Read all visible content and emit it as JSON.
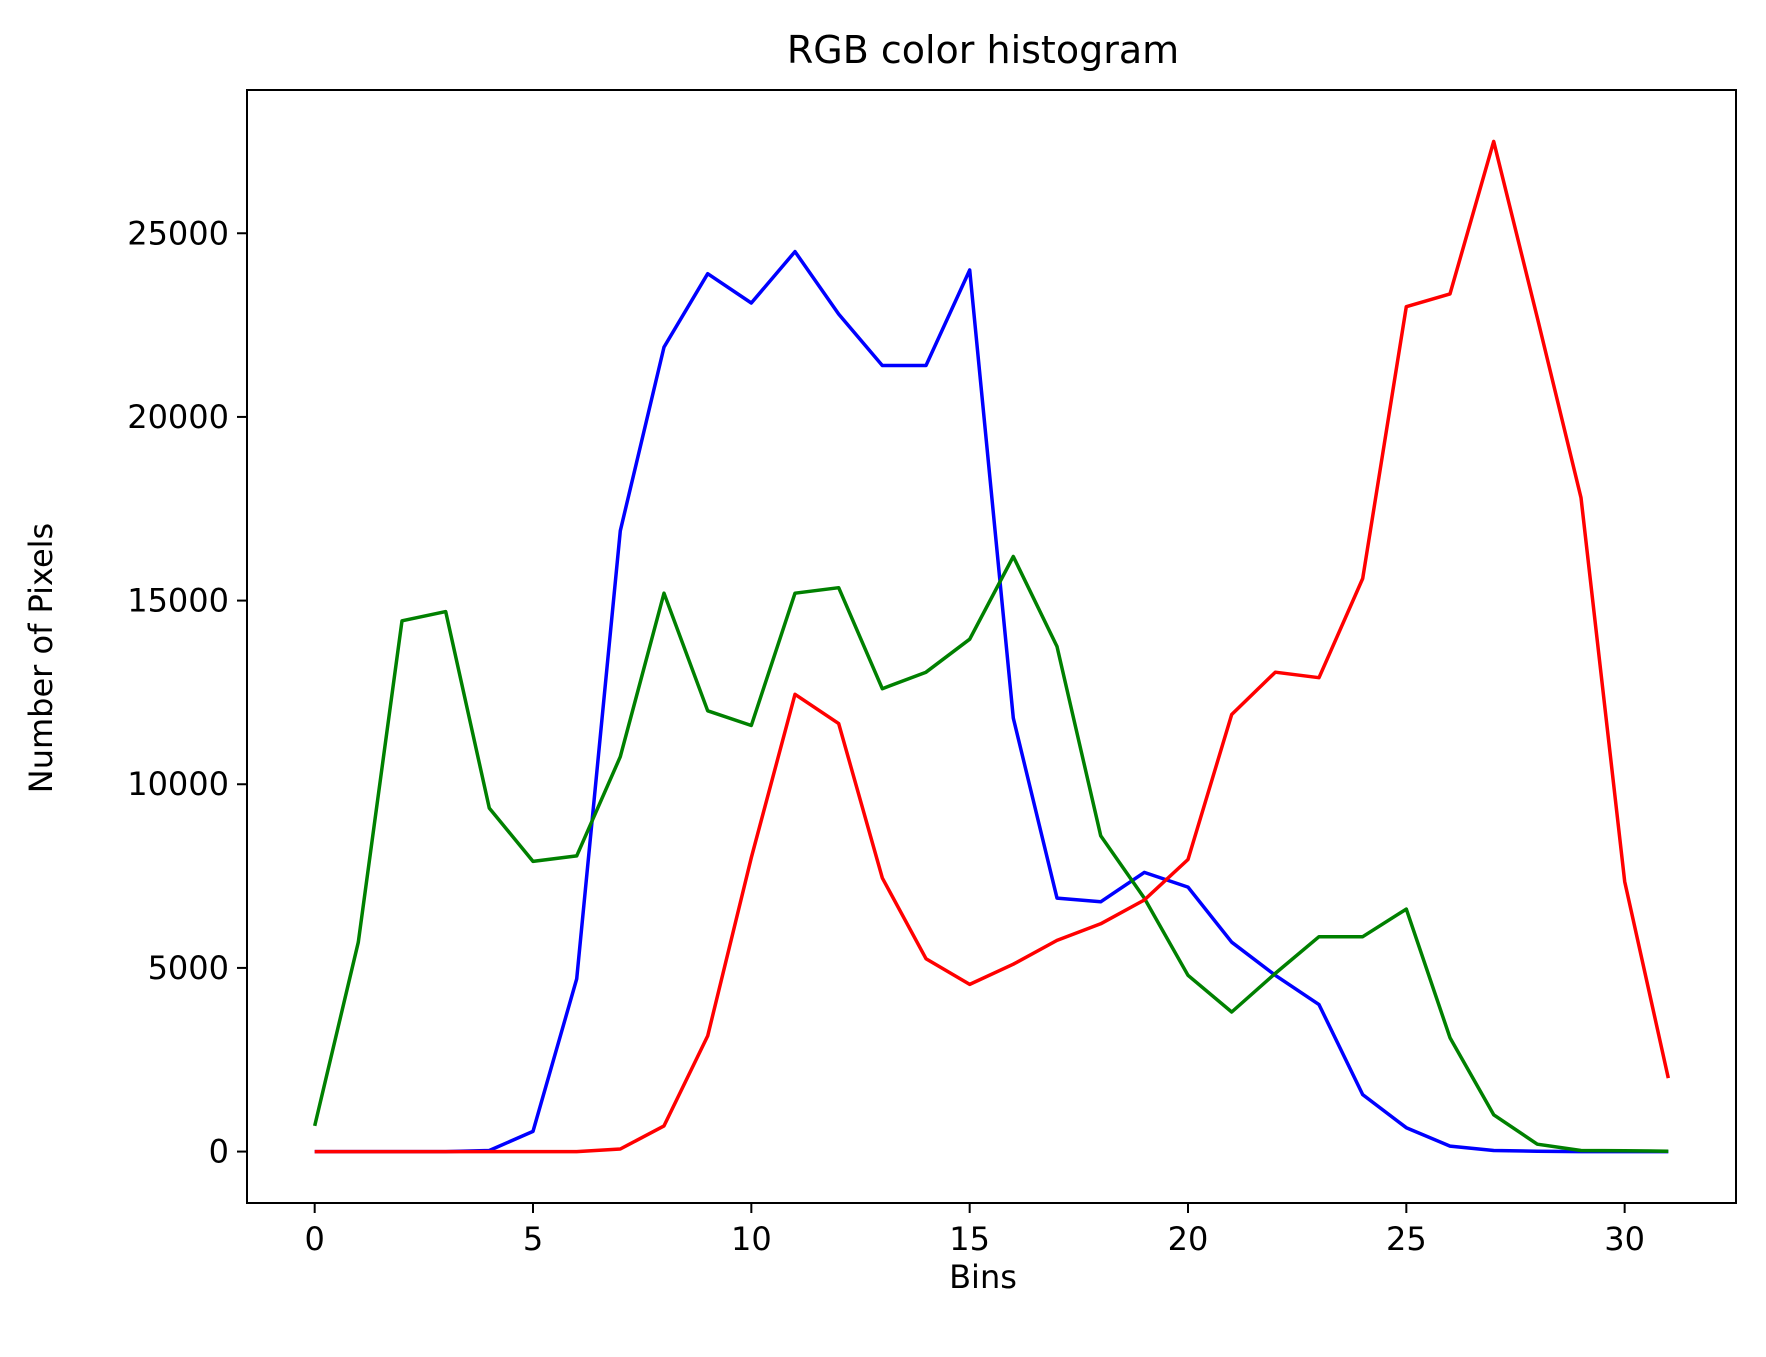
{
  "chart_data": {
    "type": "line",
    "title": "RGB color histogram",
    "xlabel": "Bins",
    "ylabel": "Number of Pixels",
    "xlim": [
      -1.55,
      32.55
    ],
    "ylim": [
      -1400,
      28900
    ],
    "xticks": [
      0,
      5,
      10,
      15,
      20,
      25,
      30
    ],
    "yticks": [
      0,
      5000,
      10000,
      15000,
      20000,
      25000
    ],
    "grid": false,
    "legend": "none",
    "x": [
      0,
      1,
      2,
      3,
      4,
      5,
      6,
      7,
      8,
      9,
      10,
      11,
      12,
      13,
      14,
      15,
      16,
      17,
      18,
      19,
      20,
      21,
      22,
      23,
      24,
      25,
      26,
      27,
      28,
      29,
      30,
      31
    ],
    "series": [
      {
        "color": "#0000ff",
        "values": [
          0,
          0,
          0,
          0,
          30,
          550,
          4700,
          16900,
          21900,
          23900,
          23100,
          24500,
          22800,
          21400,
          21400,
          24000,
          11800,
          6900,
          6800,
          7600,
          7200,
          5700,
          4800,
          4000,
          1550,
          650,
          150,
          30,
          10,
          0,
          0,
          0
        ]
      },
      {
        "color": "#008000",
        "values": [
          700,
          5700,
          14450,
          14700,
          9350,
          7900,
          8050,
          10750,
          15200,
          12000,
          11600,
          15200,
          15350,
          12600,
          13050,
          13950,
          16200,
          13750,
          8600,
          6900,
          4800,
          3800,
          4850,
          5850,
          5850,
          6600,
          3100,
          1000,
          200,
          30,
          20,
          10
        ]
      },
      {
        "color": "#ff0000",
        "values": [
          0,
          0,
          0,
          0,
          0,
          0,
          0,
          70,
          700,
          3150,
          8000,
          12450,
          11650,
          7450,
          5250,
          4550,
          5100,
          5750,
          6200,
          6850,
          7950,
          11900,
          13050,
          12900,
          15600,
          23000,
          23350,
          27500,
          22700,
          17800,
          7350,
          2000
        ]
      }
    ]
  }
}
